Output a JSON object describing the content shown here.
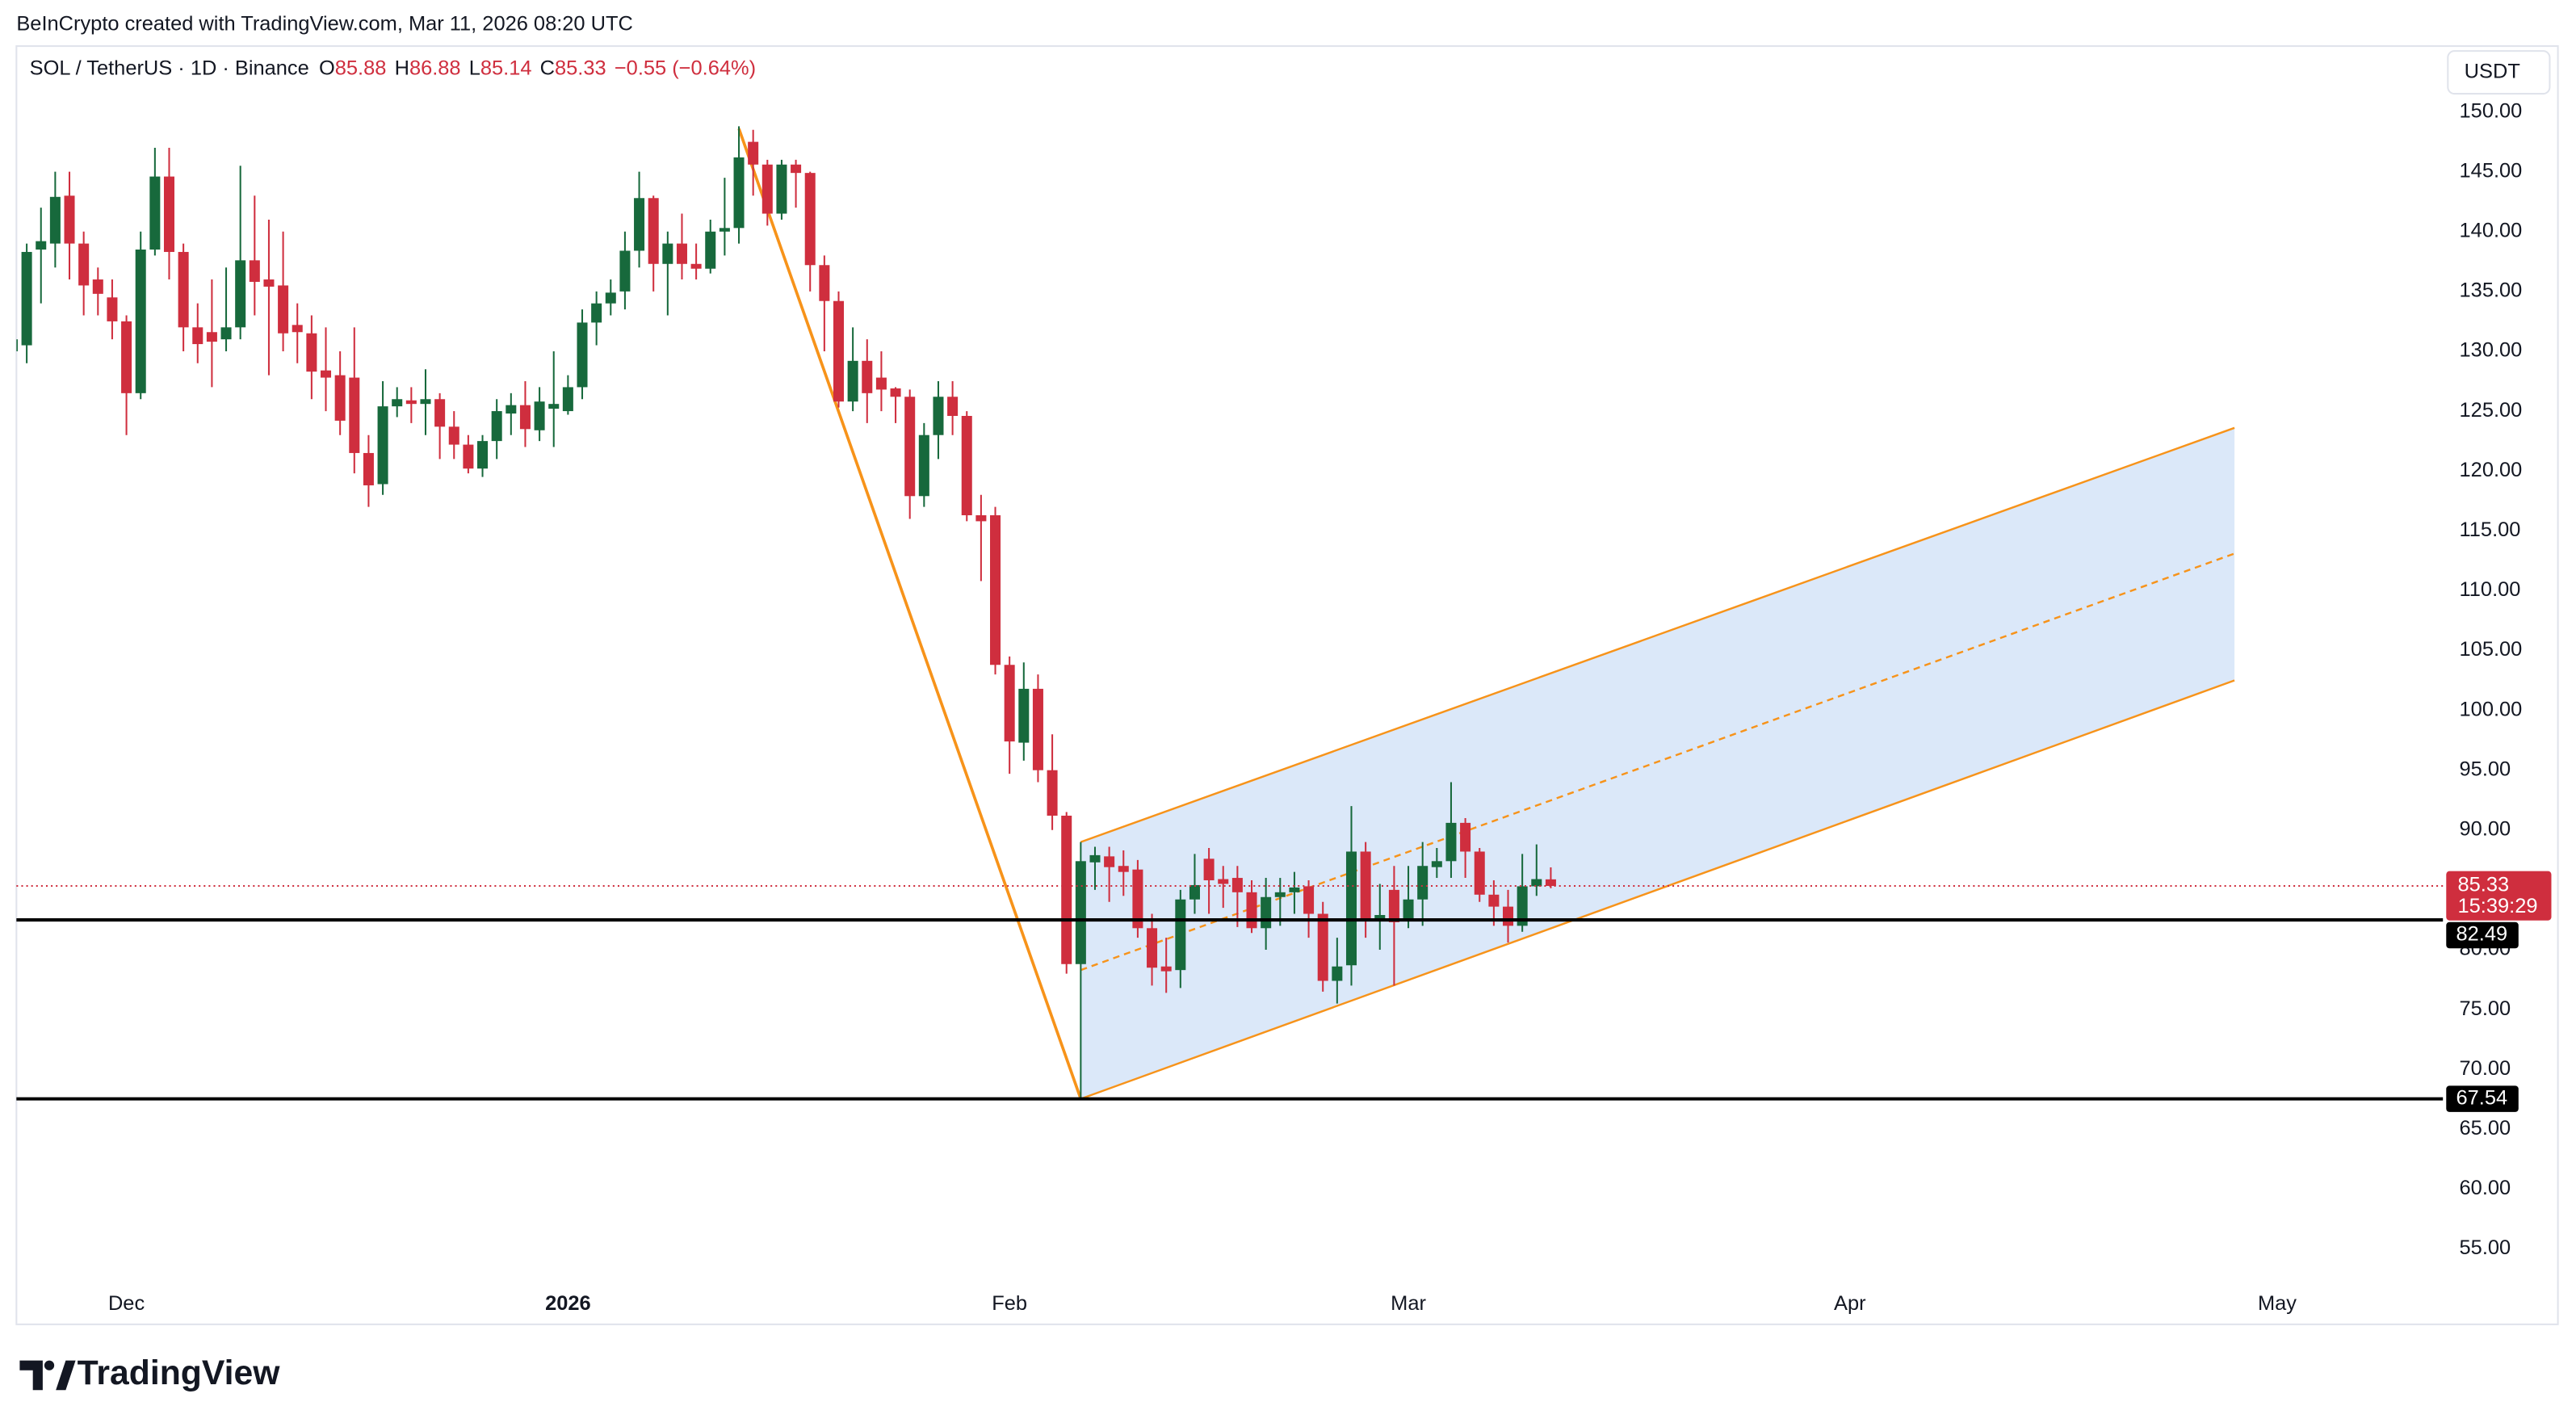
{
  "header": {
    "credit": "BeInCrypto created with TradingView.com, Mar 11, 2026 08:20 UTC"
  },
  "footer": {
    "logo_text": "TradingView"
  },
  "chart_data": {
    "type": "candlestick",
    "title": "SOL / TetherUS · 1D · Binance",
    "ohlc_labels": [
      "O",
      "H",
      "L",
      "C"
    ],
    "change_label": "−0.55 (−0.64%)",
    "currency": "USDT",
    "countdown": "15:39:29",
    "categories": [
      null,
      null,
      null,
      null,
      null,
      null,
      null,
      null,
      "Dec",
      null,
      null,
      null,
      null,
      null,
      null,
      null,
      null,
      null,
      null,
      null,
      null,
      null,
      null,
      null,
      null,
      null,
      null,
      null,
      null,
      null,
      null,
      null,
      null,
      null,
      null,
      null,
      null,
      null,
      null,
      "2026",
      null,
      null,
      null,
      null,
      null,
      null,
      null,
      null,
      null,
      null,
      null,
      null,
      null,
      null,
      null,
      null,
      null,
      null,
      null,
      null,
      null,
      null,
      null,
      null,
      null,
      null,
      null,
      null,
      null,
      null,
      "Feb",
      null,
      null,
      null,
      null,
      null,
      null,
      null,
      null,
      null,
      null,
      null,
      null,
      null,
      null,
      null,
      null,
      null,
      null,
      null,
      null,
      null,
      null,
      null,
      null,
      null,
      null,
      null,
      "Mar",
      null,
      null,
      null,
      null,
      null,
      null,
      null,
      null,
      null,
      null,
      null,
      null,
      null,
      null,
      null,
      null,
      null,
      null,
      null,
      null,
      null,
      null,
      null,
      null,
      null,
      null,
      null,
      null,
      null,
      null,
      "Apr",
      null,
      null,
      null,
      null,
      null,
      null,
      null,
      null,
      null,
      null,
      null,
      null,
      null,
      null,
      null,
      null,
      null,
      null,
      null,
      null,
      null,
      null,
      null,
      null,
      null,
      null,
      null,
      null,
      null,
      "May"
    ],
    "open": [
      130,
      130.5,
      138.5,
      139,
      143,
      139,
      136,
      134.5,
      132.5,
      126.5,
      138.5,
      144.6,
      138.3,
      132,
      131.6,
      131,
      132,
      137.6,
      136,
      135.5,
      132.2,
      131.5,
      128.4,
      128,
      127.8,
      121.5,
      118.9,
      125.4,
      125.9,
      125.6,
      126,
      123.7,
      122.2,
      120.2,
      122.5,
      124.8,
      125.5,
      123.4,
      125.2,
      125,
      127,
      132.4,
      134,
      135,
      138.4,
      142.8,
      137.3,
      139,
      137.3,
      136.9,
      140,
      140.3,
      147.5,
      145.6,
      141.5,
      145.6,
      144.9,
      137.2,
      134.2,
      125.8,
      129.2,
      127.8,
      126.9,
      126.2,
      117.9,
      123,
      126.2,
      124.6,
      116.3,
      116.3,
      103.8,
      97.3,
      101.8,
      95,
      91.2,
      78.8,
      87.3,
      87.8,
      87,
      86.7,
      81.8,
      78.6,
      78.3,
      84.2,
      87.6,
      85.9,
      86,
      84.8,
      81.8,
      84.4,
      84.8,
      85.3,
      83,
      77.4,
      78.7,
      88.2,
      82.4,
      85,
      82.4,
      84.2,
      86.9,
      87.4,
      90.6,
      88.2,
      84.6,
      83.6,
      82,
      85.3,
      85.88,
      null,
      null,
      null,
      null,
      null,
      null,
      null,
      null,
      null,
      null,
      null,
      null,
      null,
      null,
      null,
      null,
      null,
      null,
      null,
      null,
      null,
      null,
      null,
      null,
      null,
      null,
      null,
      null,
      null,
      null,
      null,
      null,
      null,
      null,
      null,
      null,
      null,
      null,
      null,
      null,
      null,
      null,
      null,
      null,
      null,
      null,
      null,
      null,
      null,
      null,
      null
    ],
    "high": [
      133,
      139,
      142,
      145,
      145,
      140,
      137,
      136,
      133,
      140,
      147,
      147,
      139,
      134,
      136,
      137,
      145.5,
      143,
      141,
      140,
      134,
      133,
      132,
      130,
      132,
      123,
      127.5,
      127,
      127,
      128.5,
      126.5,
      125,
      123,
      123,
      126,
      126.5,
      127.5,
      127,
      130,
      128,
      133.5,
      135,
      136,
      140,
      145,
      143,
      140,
      141.5,
      139,
      141,
      144.5,
      148.8,
      148.5,
      146,
      146,
      146,
      145,
      138,
      135,
      132,
      131,
      130,
      127,
      126.8,
      124,
      127.5,
      127.5,
      125,
      118,
      117,
      104.5,
      104,
      103,
      98,
      91.5,
      89,
      88.6,
      88.6,
      88.3,
      87.5,
      83,
      81,
      85,
      88,
      88.5,
      87,
      87,
      85.8,
      86,
      86,
      86.5,
      85.8,
      84,
      81,
      92,
      89,
      85.5,
      87,
      87,
      89,
      88.5,
      94,
      91,
      88.5,
      85.8,
      85,
      88,
      88.8,
      86.88,
      null,
      null,
      null,
      null,
      null,
      null,
      null,
      null,
      null,
      null,
      null,
      null,
      null,
      null,
      null,
      null,
      null,
      null,
      null,
      null,
      null,
      null,
      null,
      null,
      null,
      null,
      null,
      null,
      null,
      null,
      null,
      null,
      null,
      null,
      null,
      null,
      null,
      null,
      null,
      null,
      null,
      null,
      null,
      null,
      null,
      null,
      null,
      null,
      null,
      null,
      null
    ],
    "low": [
      127,
      129,
      134,
      137,
      136,
      133,
      133,
      131,
      123,
      126,
      138,
      136,
      130,
      129,
      127,
      130,
      131,
      133,
      128,
      130,
      129,
      126,
      125,
      123,
      119.8,
      117,
      118,
      124.5,
      124,
      123,
      121,
      121,
      119.8,
      119.5,
      121,
      123,
      122,
      122.5,
      122,
      124.7,
      126,
      130.5,
      133,
      133.5,
      137,
      135,
      133,
      136,
      136,
      136.5,
      138,
      139,
      143,
      140.5,
      141,
      142,
      135,
      130,
      125.3,
      125,
      124,
      125,
      124,
      116,
      117,
      121,
      123,
      115.8,
      110.8,
      103,
      94.7,
      95.8,
      94,
      90,
      78,
      67.54,
      85,
      84,
      84.5,
      81,
      77,
      76.4,
      76.8,
      83,
      83,
      83.5,
      81.9,
      81.4,
      80,
      82,
      83,
      81,
      76.5,
      75.5,
      77,
      81,
      80,
      77,
      81.8,
      82,
      86,
      86,
      86,
      84,
      82,
      80.6,
      81.5,
      84.5,
      85.14,
      null,
      null,
      null,
      null,
      null,
      null,
      null,
      null,
      null,
      null,
      null,
      null,
      null,
      null,
      null,
      null,
      null,
      null,
      null,
      null,
      null,
      null,
      null,
      null,
      null,
      null,
      null,
      null,
      null,
      null,
      null,
      null,
      null,
      null,
      null,
      null,
      null,
      null,
      null,
      null,
      null,
      null,
      null,
      null,
      null,
      null,
      null,
      null,
      null,
      null,
      null
    ],
    "close": [
      131,
      138.3,
      139.2,
      142.9,
      139,
      135.5,
      134.8,
      132.5,
      126.5,
      138.5,
      144.6,
      138.3,
      132,
      130.6,
      130.8,
      132,
      137.6,
      135.8,
      135.4,
      131.5,
      131.6,
      128.3,
      127.8,
      124.2,
      121.5,
      118.8,
      125.4,
      126,
      125.6,
      126,
      123.7,
      122.2,
      120.2,
      122.5,
      125,
      125.5,
      123.5,
      125.8,
      125.6,
      127,
      132.4,
      134,
      134.9,
      138.4,
      142.8,
      137.3,
      139,
      137.3,
      136.9,
      140,
      140.3,
      146.2,
      145.6,
      141.5,
      145.6,
      144.9,
      137.2,
      134.2,
      125.8,
      129.2,
      126.5,
      126.8,
      126.2,
      117.9,
      123,
      126.2,
      124.6,
      116.3,
      115.8,
      103.8,
      97.4,
      101.8,
      95,
      91.2,
      78.8,
      87.4,
      87.9,
      86.9,
      86.5,
      81.8,
      78.5,
      78.2,
      84.2,
      85.4,
      85.8,
      85.5,
      84.8,
      81.8,
      84.4,
      84.8,
      85.2,
      83,
      77.4,
      78.6,
      88.2,
      82.4,
      82.9,
      82.3,
      84.2,
      87,
      87.4,
      90.6,
      88.2,
      84.6,
      83.6,
      82,
      85.3,
      85.9,
      85.33,
      null,
      null,
      null,
      null,
      null,
      null,
      null,
      null,
      null,
      null,
      null,
      null,
      null,
      null,
      null,
      null,
      null,
      null,
      null,
      null,
      null,
      null,
      null,
      null,
      null,
      null,
      null,
      null,
      null,
      null,
      null,
      null,
      null,
      null,
      null,
      null,
      null,
      null,
      null,
      null,
      null,
      null,
      null,
      null,
      null,
      null,
      null,
      null,
      null,
      null,
      null
    ],
    "up_color": "#17693c",
    "down_color": "#cf2e3e",
    "ylim": [
      48.7,
      155.5
    ],
    "yticks": [
      {
        "value": 55,
        "label": "55.00"
      },
      {
        "value": 60,
        "label": "60.00"
      },
      {
        "value": 65,
        "label": "65.00"
      },
      {
        "value": 70,
        "label": "70.00"
      },
      {
        "value": 75,
        "label": "75.00"
      },
      {
        "value": 80,
        "label": "80.00"
      },
      {
        "value": 85,
        "label": "85.00"
      },
      {
        "value": 90,
        "label": "90.00"
      },
      {
        "value": 95,
        "label": "95.00"
      },
      {
        "value": 100,
        "label": "100.00"
      },
      {
        "value": 105,
        "label": "105.00"
      },
      {
        "value": 110,
        "label": "110.00"
      },
      {
        "value": 115,
        "label": "115.00"
      },
      {
        "value": 120,
        "label": "120.00"
      },
      {
        "value": 125,
        "label": "125.00"
      },
      {
        "value": 130,
        "label": "130.00"
      },
      {
        "value": 135,
        "label": "135.00"
      },
      {
        "value": 140,
        "label": "140.00"
      },
      {
        "value": 145,
        "label": "145.00"
      },
      {
        "value": 150,
        "label": "150.00"
      }
    ],
    "grid": false,
    "levels": [
      82.49,
      67.54
    ],
    "drawings": {
      "trend": [
        [
          51,
          148.6
        ],
        [
          75,
          67.54
        ]
      ],
      "channel_upper": [
        [
          75,
          89
        ],
        [
          156,
          123.6
        ]
      ],
      "channel_middle": [
        [
          75,
          78.3
        ],
        [
          156,
          113.1
        ]
      ],
      "channel_lower": [
        [
          75,
          67.54
        ],
        [
          156,
          102.5
        ]
      ]
    },
    "drawing_color": "#f7931a",
    "channel_fill": "#dbe8f9"
  }
}
